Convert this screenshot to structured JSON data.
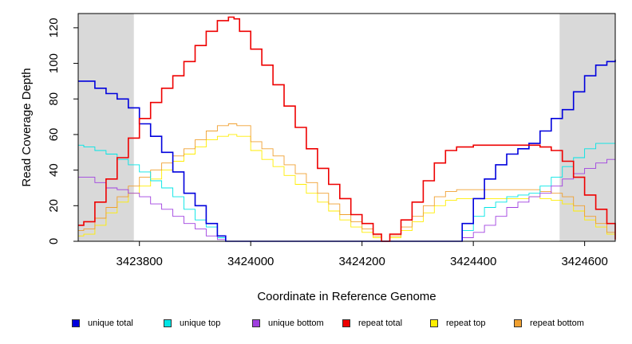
{
  "chart_data": {
    "type": "line",
    "title": "",
    "xlabel": "Coordinate in Reference Genome",
    "ylabel": "Read Coverage Depth",
    "xlim": [
      3423690,
      3424655
    ],
    "ylim": [
      0,
      128
    ],
    "xticks": [
      3423800,
      3424000,
      3424200,
      3424400,
      3424600
    ],
    "xtick_labels": [
      "3423800",
      "3424000",
      "3424200",
      "3424400",
      "3424600"
    ],
    "yticks": [
      0,
      20,
      40,
      60,
      80,
      100,
      120
    ],
    "ytick_labels": [
      "0",
      "20",
      "40",
      "60",
      "80",
      "100",
      "120"
    ],
    "shaded_regions": [
      {
        "from": 3423690,
        "to": 3423790,
        "color": "#d9d9d9"
      },
      {
        "from": 3424555,
        "to": 3424655,
        "color": "#d9d9d9"
      }
    ],
    "series": [
      {
        "name": "unique total",
        "color": "#0000dd",
        "points": [
          [
            3423690,
            90
          ],
          [
            3423700,
            90
          ],
          [
            3423720,
            86
          ],
          [
            3423740,
            83
          ],
          [
            3423760,
            80
          ],
          [
            3423780,
            75
          ],
          [
            3423800,
            66
          ],
          [
            3423820,
            59
          ],
          [
            3423840,
            50
          ],
          [
            3423860,
            39
          ],
          [
            3423880,
            27
          ],
          [
            3423900,
            20
          ],
          [
            3423920,
            10
          ],
          [
            3423940,
            3
          ],
          [
            3423955,
            0
          ],
          [
            3424360,
            0
          ],
          [
            3424380,
            10
          ],
          [
            3424400,
            24
          ],
          [
            3424420,
            35
          ],
          [
            3424440,
            43
          ],
          [
            3424460,
            49
          ],
          [
            3424480,
            52
          ],
          [
            3424500,
            55
          ],
          [
            3424520,
            62
          ],
          [
            3424540,
            69
          ],
          [
            3424560,
            74
          ],
          [
            3424580,
            84
          ],
          [
            3424600,
            93
          ],
          [
            3424620,
            99
          ],
          [
            3424640,
            101
          ],
          [
            3424655,
            102
          ]
        ]
      },
      {
        "name": "unique top",
        "color": "#00e5e5",
        "points": [
          [
            3423690,
            54
          ],
          [
            3423700,
            53
          ],
          [
            3423720,
            51
          ],
          [
            3423740,
            49
          ],
          [
            3423760,
            46
          ],
          [
            3423780,
            43
          ],
          [
            3423800,
            39
          ],
          [
            3423820,
            34
          ],
          [
            3423840,
            30
          ],
          [
            3423860,
            25
          ],
          [
            3423880,
            18
          ],
          [
            3423900,
            12
          ],
          [
            3423920,
            8
          ],
          [
            3423940,
            2
          ],
          [
            3423955,
            0
          ],
          [
            3424360,
            0
          ],
          [
            3424380,
            6
          ],
          [
            3424400,
            14
          ],
          [
            3424420,
            19
          ],
          [
            3424440,
            22
          ],
          [
            3424460,
            25
          ],
          [
            3424480,
            26
          ],
          [
            3424500,
            27
          ],
          [
            3424520,
            31
          ],
          [
            3424540,
            36
          ],
          [
            3424560,
            42
          ],
          [
            3424580,
            47
          ],
          [
            3424600,
            52
          ],
          [
            3424620,
            55
          ],
          [
            3424655,
            55
          ]
        ]
      },
      {
        "name": "unique bottom",
        "color": "#a040e0",
        "points": [
          [
            3423690,
            36
          ],
          [
            3423700,
            36
          ],
          [
            3423720,
            33
          ],
          [
            3423740,
            30
          ],
          [
            3423760,
            29
          ],
          [
            3423780,
            27
          ],
          [
            3423800,
            25
          ],
          [
            3423820,
            21
          ],
          [
            3423840,
            18
          ],
          [
            3423860,
            14
          ],
          [
            3423880,
            10
          ],
          [
            3423900,
            7
          ],
          [
            3423920,
            3
          ],
          [
            3423940,
            1
          ],
          [
            3423955,
            0
          ],
          [
            3424360,
            0
          ],
          [
            3424380,
            2
          ],
          [
            3424400,
            5
          ],
          [
            3424420,
            9
          ],
          [
            3424440,
            14
          ],
          [
            3424460,
            19
          ],
          [
            3424480,
            22
          ],
          [
            3424500,
            25
          ],
          [
            3424520,
            27
          ],
          [
            3424540,
            31
          ],
          [
            3424560,
            35
          ],
          [
            3424580,
            38
          ],
          [
            3424600,
            41
          ],
          [
            3424620,
            44
          ],
          [
            3424640,
            46
          ],
          [
            3424655,
            47
          ]
        ]
      },
      {
        "name": "repeat total",
        "color": "#ee0000",
        "points": [
          [
            3423690,
            9
          ],
          [
            3423700,
            11
          ],
          [
            3423720,
            22
          ],
          [
            3423740,
            35
          ],
          [
            3423760,
            47
          ],
          [
            3423780,
            58
          ],
          [
            3423800,
            69
          ],
          [
            3423820,
            78
          ],
          [
            3423840,
            86
          ],
          [
            3423860,
            93
          ],
          [
            3423880,
            101
          ],
          [
            3423900,
            110
          ],
          [
            3423920,
            118
          ],
          [
            3423940,
            124
          ],
          [
            3423960,
            126
          ],
          [
            3423970,
            125
          ],
          [
            3423980,
            118
          ],
          [
            3424000,
            108
          ],
          [
            3424020,
            99
          ],
          [
            3424040,
            88
          ],
          [
            3424060,
            76
          ],
          [
            3424080,
            64
          ],
          [
            3424100,
            52
          ],
          [
            3424120,
            41
          ],
          [
            3424140,
            32
          ],
          [
            3424160,
            24
          ],
          [
            3424180,
            15
          ],
          [
            3424200,
            10
          ],
          [
            3424220,
            4
          ],
          [
            3424235,
            0
          ],
          [
            3424250,
            4
          ],
          [
            3424270,
            12
          ],
          [
            3424290,
            22
          ],
          [
            3424310,
            34
          ],
          [
            3424330,
            44
          ],
          [
            3424350,
            51
          ],
          [
            3424370,
            53
          ],
          [
            3424400,
            54
          ],
          [
            3424450,
            54
          ],
          [
            3424500,
            54
          ],
          [
            3424520,
            53
          ],
          [
            3424540,
            51
          ],
          [
            3424560,
            45
          ],
          [
            3424580,
            36
          ],
          [
            3424600,
            26
          ],
          [
            3424620,
            18
          ],
          [
            3424640,
            10
          ],
          [
            3424655,
            1
          ]
        ]
      },
      {
        "name": "repeat top",
        "color": "#ffee00",
        "points": [
          [
            3423690,
            3
          ],
          [
            3423700,
            4
          ],
          [
            3423720,
            9
          ],
          [
            3423740,
            16
          ],
          [
            3423760,
            22
          ],
          [
            3423780,
            27
          ],
          [
            3423800,
            31
          ],
          [
            3423820,
            35
          ],
          [
            3423840,
            40
          ],
          [
            3423860,
            45
          ],
          [
            3423880,
            49
          ],
          [
            3423900,
            53
          ],
          [
            3423920,
            57
          ],
          [
            3423940,
            59
          ],
          [
            3423960,
            60
          ],
          [
            3423975,
            59
          ],
          [
            3424000,
            51
          ],
          [
            3424020,
            46
          ],
          [
            3424040,
            42
          ],
          [
            3424060,
            37
          ],
          [
            3424080,
            32
          ],
          [
            3424100,
            27
          ],
          [
            3424120,
            22
          ],
          [
            3424140,
            17
          ],
          [
            3424160,
            12
          ],
          [
            3424180,
            8
          ],
          [
            3424200,
            5
          ],
          [
            3424220,
            2
          ],
          [
            3424235,
            0
          ],
          [
            3424250,
            2
          ],
          [
            3424270,
            6
          ],
          [
            3424290,
            11
          ],
          [
            3424310,
            16
          ],
          [
            3424330,
            20
          ],
          [
            3424350,
            23
          ],
          [
            3424370,
            24
          ],
          [
            3424400,
            24
          ],
          [
            3424450,
            24
          ],
          [
            3424500,
            25
          ],
          [
            3424520,
            24
          ],
          [
            3424540,
            23
          ],
          [
            3424560,
            21
          ],
          [
            3424580,
            17
          ],
          [
            3424600,
            12
          ],
          [
            3424620,
            8
          ],
          [
            3424640,
            4
          ],
          [
            3424655,
            0
          ]
        ]
      },
      {
        "name": "repeat bottom",
        "color": "#f0a030",
        "points": [
          [
            3423690,
            6
          ],
          [
            3423700,
            7
          ],
          [
            3423720,
            13
          ],
          [
            3423740,
            19
          ],
          [
            3423760,
            25
          ],
          [
            3423780,
            31
          ],
          [
            3423800,
            36
          ],
          [
            3423820,
            40
          ],
          [
            3423840,
            44
          ],
          [
            3423860,
            48
          ],
          [
            3423880,
            52
          ],
          [
            3423900,
            57
          ],
          [
            3423920,
            62
          ],
          [
            3423940,
            65
          ],
          [
            3423960,
            66
          ],
          [
            3423975,
            65
          ],
          [
            3424000,
            56
          ],
          [
            3424020,
            52
          ],
          [
            3424040,
            48
          ],
          [
            3424060,
            43
          ],
          [
            3424080,
            38
          ],
          [
            3424100,
            33
          ],
          [
            3424120,
            27
          ],
          [
            3424140,
            21
          ],
          [
            3424160,
            15
          ],
          [
            3424180,
            11
          ],
          [
            3424200,
            7
          ],
          [
            3424220,
            3
          ],
          [
            3424235,
            0
          ],
          [
            3424250,
            3
          ],
          [
            3424270,
            8
          ],
          [
            3424290,
            14
          ],
          [
            3424310,
            20
          ],
          [
            3424330,
            25
          ],
          [
            3424350,
            28
          ],
          [
            3424370,
            29
          ],
          [
            3424400,
            29
          ],
          [
            3424450,
            29
          ],
          [
            3424500,
            29
          ],
          [
            3424520,
            28
          ],
          [
            3424540,
            27
          ],
          [
            3424560,
            25
          ],
          [
            3424580,
            20
          ],
          [
            3424600,
            14
          ],
          [
            3424620,
            10
          ],
          [
            3424640,
            5
          ],
          [
            3424655,
            1
          ]
        ]
      }
    ],
    "legend": {
      "placement": "bottom",
      "entries": [
        "unique total",
        "unique top",
        "unique bottom",
        "repeat total",
        "repeat top",
        "repeat bottom"
      ]
    }
  }
}
